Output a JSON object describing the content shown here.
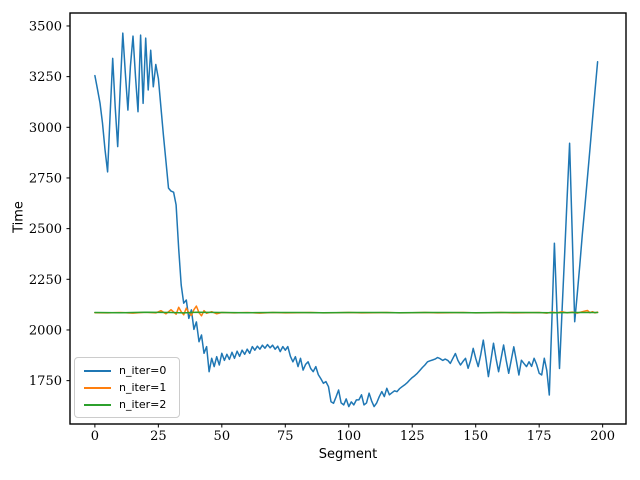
{
  "figure": {
    "background": "#ffffff",
    "frame_color": "#000000"
  },
  "chart_data": {
    "type": "line",
    "title": "",
    "xlabel": "Segment",
    "ylabel": "Time",
    "xlim": [
      -9.8,
      209.2
    ],
    "ylim": [
      1536,
      3564
    ],
    "x_ticks": [
      0,
      25,
      50,
      75,
      100,
      125,
      150,
      175,
      200
    ],
    "y_ticks": [
      1750,
      2000,
      2250,
      2500,
      2750,
      3000,
      3250,
      3500
    ],
    "grid": false,
    "legend_position": "lower-left",
    "series": [
      {
        "name": "n_iter=0",
        "color": "#1f77b4",
        "points": [
          [
            0,
            3255
          ],
          [
            1,
            3190
          ],
          [
            2,
            3120
          ],
          [
            3,
            3020
          ],
          [
            4,
            2890
          ],
          [
            5,
            2780
          ],
          [
            6,
            3060
          ],
          [
            7,
            3340
          ],
          [
            8,
            3100
          ],
          [
            9,
            2905
          ],
          [
            10,
            3200
          ],
          [
            11,
            3465
          ],
          [
            12,
            3270
          ],
          [
            13,
            3085
          ],
          [
            14,
            3300
          ],
          [
            15,
            3450
          ],
          [
            16,
            3250
          ],
          [
            17,
            3077
          ],
          [
            18,
            3455
          ],
          [
            19,
            3118
          ],
          [
            20,
            3440
          ],
          [
            21,
            3184
          ],
          [
            22,
            3380
          ],
          [
            23,
            3200
          ],
          [
            24,
            3310
          ],
          [
            25,
            3240
          ],
          [
            26,
            3100
          ],
          [
            27,
            2962
          ],
          [
            28,
            2830
          ],
          [
            29,
            2700
          ],
          [
            30,
            2685
          ],
          [
            31,
            2680
          ],
          [
            32,
            2617
          ],
          [
            33,
            2400
          ],
          [
            34,
            2222
          ],
          [
            35,
            2132
          ],
          [
            36,
            2148
          ],
          [
            37,
            2057
          ],
          [
            38,
            2099
          ],
          [
            39,
            2003
          ],
          [
            40,
            2040
          ],
          [
            41,
            1942
          ],
          [
            42,
            1975
          ],
          [
            43,
            1885
          ],
          [
            44,
            1918
          ],
          [
            45,
            1794
          ],
          [
            46,
            1860
          ],
          [
            47,
            1819
          ],
          [
            48,
            1868
          ],
          [
            49,
            1827
          ],
          [
            50,
            1885
          ],
          [
            51,
            1850
          ],
          [
            52,
            1880
          ],
          [
            53,
            1855
          ],
          [
            54,
            1890
          ],
          [
            55,
            1860
          ],
          [
            56,
            1895
          ],
          [
            57,
            1870
          ],
          [
            58,
            1900
          ],
          [
            59,
            1880
          ],
          [
            60,
            1905
          ],
          [
            61,
            1885
          ],
          [
            62,
            1918
          ],
          [
            63,
            1900
          ],
          [
            64,
            1920
          ],
          [
            65,
            1905
          ],
          [
            66,
            1925
          ],
          [
            67,
            1910
          ],
          [
            68,
            1928
          ],
          [
            69,
            1912
          ],
          [
            70,
            1925
          ],
          [
            71,
            1905
          ],
          [
            72,
            1920
          ],
          [
            73,
            1893
          ],
          [
            74,
            1918
          ],
          [
            75,
            1900
          ],
          [
            76,
            1918
          ],
          [
            77,
            1870
          ],
          [
            78,
            1843
          ],
          [
            79,
            1868
          ],
          [
            80,
            1819
          ],
          [
            81,
            1860
          ],
          [
            82,
            1802
          ],
          [
            83,
            1830
          ],
          [
            84,
            1843
          ],
          [
            85,
            1810
          ],
          [
            86,
            1794
          ],
          [
            87,
            1819
          ],
          [
            88,
            1780
          ],
          [
            89,
            1760
          ],
          [
            90,
            1737
          ],
          [
            91,
            1745
          ],
          [
            92,
            1720
          ],
          [
            93,
            1646
          ],
          [
            94,
            1638
          ],
          [
            95,
            1670
          ],
          [
            96,
            1704
          ],
          [
            97,
            1640
          ],
          [
            98,
            1630
          ],
          [
            99,
            1660
          ],
          [
            100,
            1622
          ],
          [
            101,
            1645
          ],
          [
            102,
            1630
          ],
          [
            103,
            1655
          ],
          [
            104,
            1655
          ],
          [
            105,
            1680
          ],
          [
            106,
            1630
          ],
          [
            107,
            1640
          ],
          [
            108,
            1688
          ],
          [
            109,
            1650
          ],
          [
            110,
            1622
          ],
          [
            111,
            1640
          ],
          [
            112,
            1670
          ],
          [
            113,
            1696
          ],
          [
            114,
            1671
          ],
          [
            115,
            1712
          ],
          [
            116,
            1680
          ],
          [
            117,
            1690
          ],
          [
            118,
            1700
          ],
          [
            119,
            1696
          ],
          [
            120,
            1710
          ],
          [
            121,
            1720
          ],
          [
            122,
            1729
          ],
          [
            123,
            1740
          ],
          [
            124,
            1753
          ],
          [
            125,
            1765
          ],
          [
            126,
            1775
          ],
          [
            127,
            1786
          ],
          [
            128,
            1800
          ],
          [
            129,
            1815
          ],
          [
            130,
            1827
          ],
          [
            131,
            1843
          ],
          [
            132,
            1848
          ],
          [
            133,
            1852
          ],
          [
            134,
            1856
          ],
          [
            135,
            1864
          ],
          [
            136,
            1858
          ],
          [
            137,
            1850
          ],
          [
            138,
            1856
          ],
          [
            139,
            1850
          ],
          [
            140,
            1835
          ],
          [
            141,
            1860
          ],
          [
            142,
            1884
          ],
          [
            143,
            1850
          ],
          [
            144,
            1827
          ],
          [
            145,
            1845
          ],
          [
            146,
            1860
          ],
          [
            147,
            1811
          ],
          [
            148,
            1850
          ],
          [
            149,
            1909
          ],
          [
            150,
            1860
          ],
          [
            151,
            1819
          ],
          [
            152,
            1880
          ],
          [
            153,
            1950
          ],
          [
            154,
            1860
          ],
          [
            155,
            1770
          ],
          [
            156,
            1850
          ],
          [
            157,
            1934
          ],
          [
            158,
            1860
          ],
          [
            159,
            1794
          ],
          [
            160,
            1860
          ],
          [
            161,
            1926
          ],
          [
            162,
            1850
          ],
          [
            163,
            1786
          ],
          [
            164,
            1850
          ],
          [
            165,
            1917
          ],
          [
            166,
            1850
          ],
          [
            167,
            1778
          ],
          [
            168,
            1851
          ],
          [
            169,
            1835
          ],
          [
            170,
            1819
          ],
          [
            171,
            1843
          ],
          [
            172,
            1820
          ],
          [
            173,
            1860
          ],
          [
            174,
            1830
          ],
          [
            175,
            1786
          ],
          [
            176,
            1778
          ],
          [
            177,
            1860
          ],
          [
            178,
            1800
          ],
          [
            179,
            1679
          ],
          [
            180,
            2050
          ],
          [
            181,
            2428
          ],
          [
            182,
            2100
          ],
          [
            183,
            1810
          ],
          [
            184,
            2090
          ],
          [
            185,
            2370
          ],
          [
            186,
            2650
          ],
          [
            187,
            2921
          ],
          [
            188,
            2480
          ],
          [
            189,
            2041
          ],
          [
            190,
            2180
          ],
          [
            191,
            2320
          ],
          [
            192,
            2470
          ],
          [
            193,
            2610
          ],
          [
            194,
            2750
          ],
          [
            195,
            2890
          ],
          [
            196,
            3040
          ],
          [
            197,
            3180
          ],
          [
            198,
            3323
          ]
        ]
      },
      {
        "name": "n_iter=1",
        "color": "#ff7f0e",
        "points": [
          [
            0,
            2085
          ],
          [
            5,
            2084
          ],
          [
            10,
            2086
          ],
          [
            15,
            2083
          ],
          [
            20,
            2087
          ],
          [
            24,
            2084
          ],
          [
            26,
            2095
          ],
          [
            28,
            2080
          ],
          [
            30,
            2100
          ],
          [
            32,
            2078
          ],
          [
            33,
            2112
          ],
          [
            34,
            2090
          ],
          [
            35,
            2075
          ],
          [
            36,
            2108
          ],
          [
            37,
            2085
          ],
          [
            38,
            2072
          ],
          [
            39,
            2100
          ],
          [
            40,
            2118
          ],
          [
            41,
            2085
          ],
          [
            42,
            2070
          ],
          [
            43,
            2095
          ],
          [
            44,
            2082
          ],
          [
            46,
            2090
          ],
          [
            48,
            2080
          ],
          [
            50,
            2086
          ],
          [
            55,
            2084
          ],
          [
            60,
            2086
          ],
          [
            65,
            2083
          ],
          [
            70,
            2086
          ],
          [
            75,
            2084
          ],
          [
            80,
            2085
          ],
          [
            85,
            2086
          ],
          [
            90,
            2084
          ],
          [
            95,
            2085
          ],
          [
            100,
            2086
          ],
          [
            105,
            2084
          ],
          [
            110,
            2085
          ],
          [
            115,
            2086
          ],
          [
            120,
            2084
          ],
          [
            125,
            2085
          ],
          [
            130,
            2086
          ],
          [
            135,
            2084
          ],
          [
            140,
            2085
          ],
          [
            145,
            2086
          ],
          [
            150,
            2084
          ],
          [
            155,
            2085
          ],
          [
            160,
            2086
          ],
          [
            165,
            2084
          ],
          [
            170,
            2085
          ],
          [
            175,
            2086
          ],
          [
            178,
            2083
          ],
          [
            180,
            2088
          ],
          [
            182,
            2084
          ],
          [
            184,
            2090
          ],
          [
            186,
            2084
          ],
          [
            188,
            2088
          ],
          [
            190,
            2083
          ],
          [
            192,
            2090
          ],
          [
            194,
            2096
          ],
          [
            195,
            2085
          ],
          [
            196,
            2090
          ],
          [
            197,
            2084
          ],
          [
            198,
            2088
          ]
        ]
      },
      {
        "name": "n_iter=2",
        "color": "#2ca02c",
        "points": [
          [
            0,
            2086
          ],
          [
            10,
            2085
          ],
          [
            20,
            2087
          ],
          [
            30,
            2086
          ],
          [
            35,
            2084
          ],
          [
            40,
            2087
          ],
          [
            50,
            2086
          ],
          [
            60,
            2085
          ],
          [
            70,
            2086
          ],
          [
            80,
            2086
          ],
          [
            90,
            2085
          ],
          [
            100,
            2086
          ],
          [
            110,
            2086
          ],
          [
            120,
            2085
          ],
          [
            130,
            2086
          ],
          [
            140,
            2086
          ],
          [
            150,
            2085
          ],
          [
            160,
            2086
          ],
          [
            170,
            2086
          ],
          [
            180,
            2085
          ],
          [
            190,
            2086
          ],
          [
            198,
            2086
          ]
        ]
      }
    ]
  }
}
